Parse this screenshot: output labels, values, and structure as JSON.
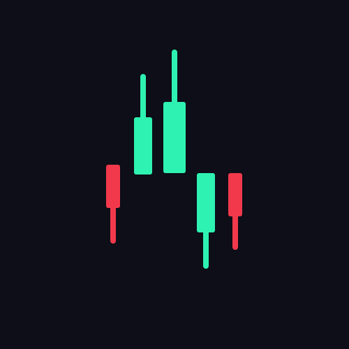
{
  "colors": {
    "background": "#0d0e18",
    "bullish": "#2ef2b1",
    "bearish": "#f2394b"
  },
  "logo": {
    "icon": "candlestick-chart-icon",
    "candles": [
      {
        "direction": "bearish"
      },
      {
        "direction": "bullish"
      },
      {
        "direction": "bullish"
      },
      {
        "direction": "bullish"
      },
      {
        "direction": "bearish"
      }
    ]
  }
}
